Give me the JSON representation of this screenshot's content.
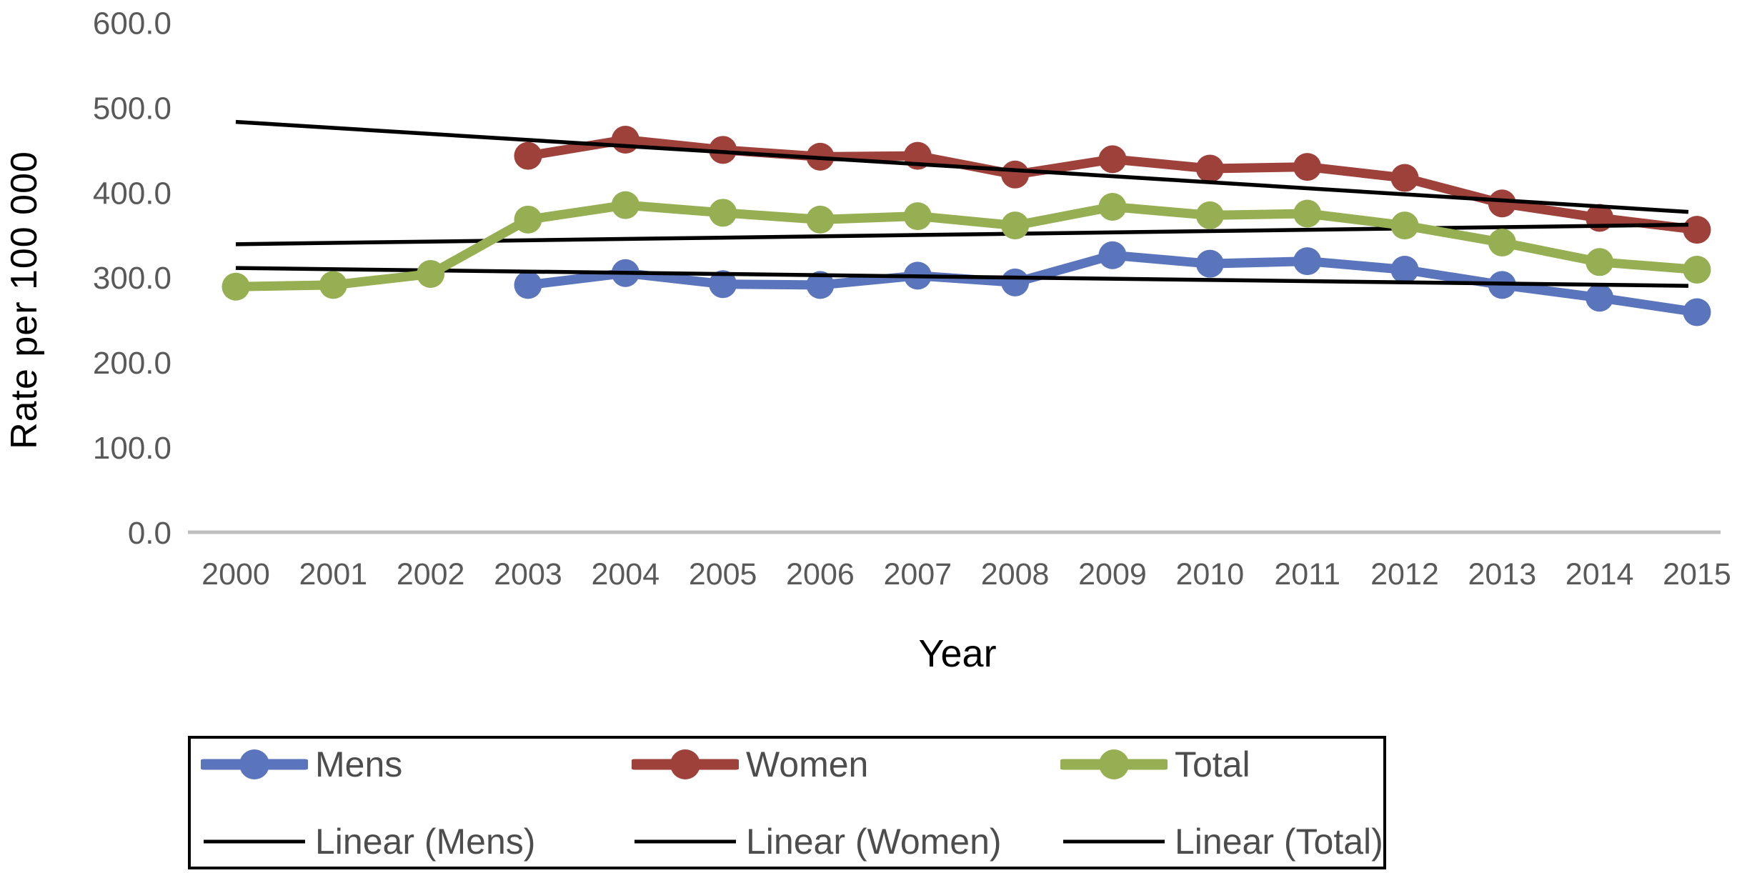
{
  "chart_data": {
    "type": "line",
    "title": "",
    "xlabel": "Year",
    "ylabel": "Rate per 100 000",
    "x": [
      2000,
      2001,
      2002,
      2003,
      2004,
      2005,
      2006,
      2007,
      2008,
      2009,
      2010,
      2011,
      2012,
      2013,
      2014,
      2015
    ],
    "x_tick_labels": [
      "2000",
      "2001",
      "2002",
      "2003",
      "2004",
      "2005",
      "2006",
      "2007",
      "2008",
      "2009",
      "2010",
      "2011",
      "2012",
      "2013",
      "2014",
      "2015"
    ],
    "ylim": [
      0,
      600
    ],
    "y_ticks": [
      0,
      100,
      200,
      300,
      400,
      500,
      600
    ],
    "y_tick_labels": [
      "0.0",
      "100.0",
      "200.0",
      "300.0",
      "400.0",
      "500.0",
      "600.0"
    ],
    "grid": "off",
    "legend_position": "bottom",
    "series": [
      {
        "name": "Mens",
        "color": "#5B75BC",
        "values": [
          null,
          null,
          null,
          291,
          305,
          292,
          291,
          302,
          294,
          326,
          316,
          319,
          309,
          291,
          276,
          259
        ]
      },
      {
        "name": "Women",
        "color": "#9E413A",
        "values": [
          null,
          null,
          null,
          443,
          462,
          450,
          442,
          443,
          421,
          439,
          428,
          430,
          417,
          387,
          370,
          356
        ]
      },
      {
        "name": "Total",
        "color": "#97AF53",
        "values": [
          289,
          291,
          304,
          368,
          385,
          376,
          368,
          372,
          361,
          383,
          373,
          375,
          361,
          341,
          318,
          309
        ]
      }
    ],
    "trendlines": [
      {
        "name": "Linear (Mens)",
        "color": "#000000",
        "start_year": 2000,
        "end_year": 2015,
        "start_value": 311,
        "end_value": 290
      },
      {
        "name": "Linear (Women)",
        "color": "#000000",
        "start_year": 2000,
        "end_year": 2015,
        "start_value": 483,
        "end_value": 377
      },
      {
        "name": "Linear (Total)",
        "color": "#000000",
        "start_year": 2000,
        "end_year": 2015,
        "start_value": 339,
        "end_value": 362
      }
    ],
    "colors": {
      "axis_line": "#BFBFBF",
      "tick_label": "#595959",
      "axis_title": "#000000",
      "legend_text": "#4d4d4d",
      "legend_border": "#000000"
    },
    "legend": {
      "entries": [
        {
          "label": "Mens",
          "kind": "series",
          "series": 0
        },
        {
          "label": "Women",
          "kind": "series",
          "series": 1
        },
        {
          "label": "Total",
          "kind": "series",
          "series": 2
        },
        {
          "label": "Linear (Mens)",
          "kind": "trend"
        },
        {
          "label": "Linear (Women)",
          "kind": "trend"
        },
        {
          "label": "Linear (Total)",
          "kind": "trend"
        }
      ]
    }
  }
}
